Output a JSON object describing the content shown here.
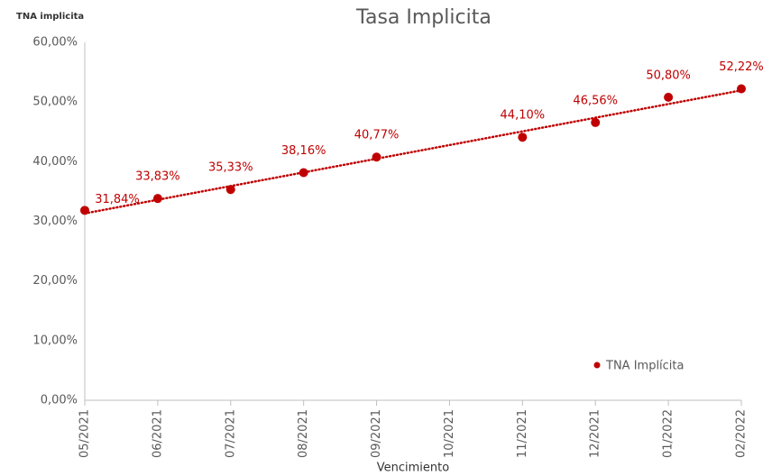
{
  "chart_data": {
    "type": "scatter",
    "title": "Tasa Implicita",
    "y_label": "TNA implicita",
    "x_label": "Vencimiento",
    "categories": [
      "05/2021",
      "06/2021",
      "07/2021",
      "08/2021",
      "09/2021",
      "10/2021",
      "11/2021",
      "12/2021",
      "01/2022",
      "02/2022"
    ],
    "series": [
      {
        "name": "TNA Implícita",
        "color": "#c00000",
        "values": [
          31.84,
          33.83,
          35.33,
          38.16,
          40.77,
          null,
          44.1,
          46.56,
          50.8,
          52.22
        ],
        "value_labels": [
          "31,84%",
          "33,83%",
          "35,33%",
          "38,16%",
          "40,77%",
          null,
          "44,10%",
          "46,56%",
          "50,80%",
          "52,22%"
        ]
      }
    ],
    "ylim": [
      0,
      60
    ],
    "yticks": [
      {
        "value": 0,
        "label": "0,00%"
      },
      {
        "value": 10,
        "label": "10,00%"
      },
      {
        "value": 20,
        "label": "20,00%"
      },
      {
        "value": 30,
        "label": "30,00%"
      },
      {
        "value": 40,
        "label": "40,00%"
      },
      {
        "value": 50,
        "label": "50,00%"
      },
      {
        "value": 60,
        "label": "60,00%"
      }
    ],
    "trendline": "linear",
    "legend": "lower right"
  }
}
